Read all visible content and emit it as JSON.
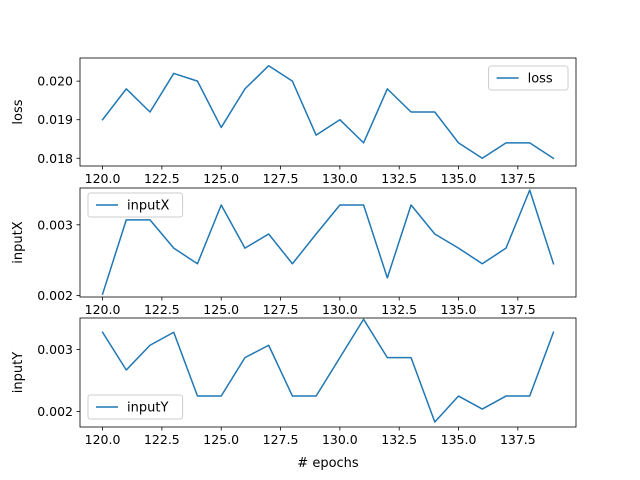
{
  "chart_data": [
    {
      "type": "line",
      "ylabel": "loss",
      "xlabel": "",
      "legend": "top-right",
      "color": "#1f77b4",
      "xlim": [
        119.05,
        139.95
      ],
      "ylim": [
        0.0178,
        0.0206
      ],
      "x_ticks": [
        120.0,
        122.5,
        125.0,
        127.5,
        130.0,
        132.5,
        135.0,
        137.5
      ],
      "x_tick_labels": [
        "120.0",
        "122.5",
        "125.0",
        "127.5",
        "130.0",
        "132.5",
        "135.0",
        "137.5"
      ],
      "y_ticks": [
        0.018,
        0.019,
        0.02
      ],
      "y_tick_labels": [
        "0.018",
        "0.019",
        "0.020"
      ],
      "series": [
        {
          "name": "loss",
          "x": [
            120,
            121,
            122,
            123,
            124,
            125,
            126,
            127,
            128,
            129,
            130,
            131,
            132,
            133,
            134,
            135,
            136,
            137,
            138,
            139
          ],
          "values": [
            0.019,
            0.0198,
            0.0192,
            0.0202,
            0.02,
            0.0188,
            0.0198,
            0.0204,
            0.02,
            0.0186,
            0.019,
            0.0184,
            0.0198,
            0.0192,
            0.0192,
            0.0184,
            0.018,
            0.0184,
            0.0184,
            0.018
          ]
        }
      ]
    },
    {
      "type": "line",
      "ylabel": "inputX",
      "xlabel": "",
      "legend": "top-left",
      "color": "#1f77b4",
      "xlim": [
        119.05,
        139.95
      ],
      "ylim": [
        0.00198,
        0.00352
      ],
      "x_ticks": [
        120.0,
        122.5,
        125.0,
        127.5,
        130.0,
        132.5,
        135.0,
        137.5
      ],
      "x_tick_labels": [
        "120.0",
        "122.5",
        "125.0",
        "127.5",
        "130.0",
        "132.5",
        "135.0",
        "137.5"
      ],
      "y_ticks": [
        0.002,
        0.003
      ],
      "y_tick_labels": [
        "0.002",
        "0.003"
      ],
      "series": [
        {
          "name": "inputX",
          "x": [
            120,
            121,
            122,
            123,
            124,
            125,
            126,
            127,
            128,
            129,
            130,
            131,
            132,
            133,
            134,
            135,
            136,
            137,
            138,
            139
          ],
          "values": [
            0.00202,
            0.00307,
            0.00307,
            0.00267,
            0.00245,
            0.00328,
            0.00267,
            0.00287,
            0.00245,
            0.00287,
            0.00328,
            0.00328,
            0.00225,
            0.00328,
            0.00287,
            0.00267,
            0.00245,
            0.00267,
            0.00349,
            0.00245
          ]
        }
      ]
    },
    {
      "type": "line",
      "ylabel": "inputY",
      "xlabel": "# epochs",
      "legend": "bottom-left",
      "color": "#1f77b4",
      "xlim": [
        119.05,
        139.95
      ],
      "ylim": [
        0.00175,
        0.00351
      ],
      "x_ticks": [
        120.0,
        122.5,
        125.0,
        127.5,
        130.0,
        132.5,
        135.0,
        137.5
      ],
      "x_tick_labels": [
        "120.0",
        "122.5",
        "125.0",
        "127.5",
        "130.0",
        "132.5",
        "135.0",
        "137.5"
      ],
      "y_ticks": [
        0.002,
        0.003
      ],
      "y_tick_labels": [
        "0.002",
        "0.003"
      ],
      "series": [
        {
          "name": "inputY",
          "x": [
            120,
            121,
            122,
            123,
            124,
            125,
            126,
            127,
            128,
            129,
            130,
            131,
            132,
            133,
            134,
            135,
            136,
            137,
            138,
            139
          ],
          "values": [
            0.00328,
            0.00267,
            0.00307,
            0.00328,
            0.00225,
            0.00225,
            0.00287,
            0.00307,
            0.00225,
            0.00225,
            0.00287,
            0.00349,
            0.00287,
            0.00287,
            0.00183,
            0.00225,
            0.00204,
            0.00225,
            0.00225,
            0.00328
          ]
        }
      ]
    }
  ]
}
